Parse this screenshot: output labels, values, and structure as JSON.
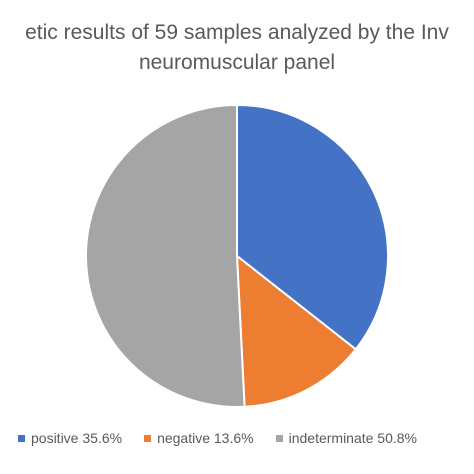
{
  "chart_data": {
    "type": "pie",
    "title_line1": "etic results of 59 samples analyzed by the Inv",
    "title_line2": "neuromuscular panel",
    "categories": [
      "positive",
      "negative",
      "indeterminate"
    ],
    "values": [
      35.6,
      13.6,
      50.8
    ],
    "labels": [
      "positive 35.6%",
      "negative 13.6%",
      "indeterminate 50.8%"
    ],
    "colors": [
      "#4472C4",
      "#ED7D31",
      "#A5A5A5"
    ],
    "legend_position": "bottom"
  }
}
